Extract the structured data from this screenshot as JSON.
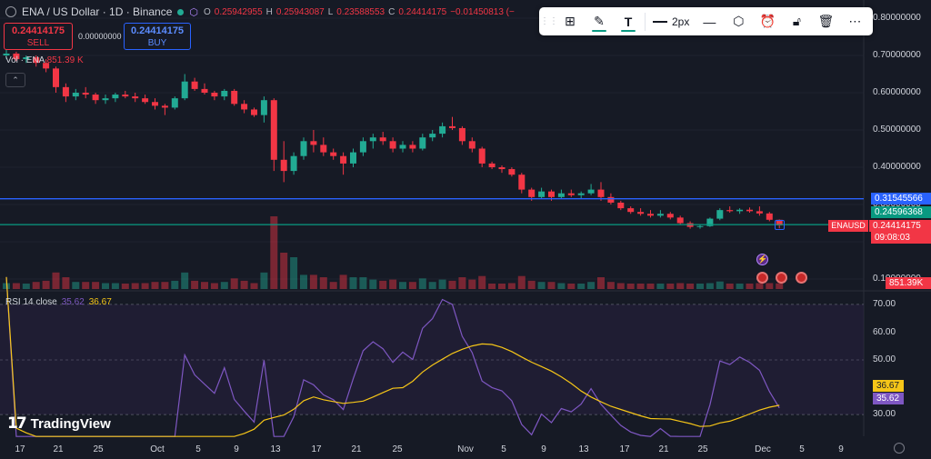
{
  "header": {
    "symbol_title": "ENA / US Dollar · 1D · Binance",
    "ohlc": [
      {
        "k": "O",
        "v": "0.25942955"
      },
      {
        "k": "H",
        "v": "0.25943087"
      },
      {
        "k": "L",
        "v": "0.23588553"
      },
      {
        "k": "C",
        "v": "0.24414175"
      },
      {
        "k": "",
        "v": "−0.01450813 (−"
      }
    ]
  },
  "trade": {
    "sell_price": "0.24414175",
    "sell_label": "SELL",
    "spread": "0.00000000",
    "buy_price": "0.24414175",
    "buy_label": "BUY"
  },
  "volume_label": {
    "name": "Vol · ENA",
    "value": "851.39 K"
  },
  "toolbar": {
    "icons": [
      "add-widgets-icon",
      "brush-icon",
      "text-icon",
      "stroke-line-icon",
      "settings-icon",
      "alarm-add-icon",
      "unlock-icon",
      "trash-icon",
      "more-icon"
    ],
    "stroke_width": "2px"
  },
  "price_axis": [
    "0.80000000",
    "0.70000000",
    "0.60000000",
    "0.50000000",
    "0.40000000",
    "0.30000000",
    "0.20000000",
    "0.10000000"
  ],
  "price_tags": {
    "blue_line": "0.31545566",
    "green_line": "0.24596368",
    "symbol": "ENAUSD",
    "last_price": "0.24414175",
    "countdown": "09:08:03",
    "volume": "851.39K"
  },
  "rsi": {
    "label": "RSI 14 close",
    "value1": "35.62",
    "value2": "36.67",
    "axis": [
      "70.00",
      "60.00",
      "50.00",
      "40.00",
      "30.00"
    ],
    "tag_ma": "36.67",
    "tag_rsi": "35.62"
  },
  "x_axis": [
    "17",
    "21",
    "25",
    "Oct",
    "5",
    "9",
    "13",
    "17",
    "21",
    "25",
    "Nov",
    "5",
    "9",
    "13",
    "17",
    "21",
    "25",
    "Dec",
    "5",
    "9"
  ],
  "logo": "TradingView",
  "colors": {
    "up": "#22ab94",
    "down": "#f23645",
    "blue_line": "#2962ff",
    "green_line": "#089981",
    "rsi": "#7e57c2",
    "rsi_ma": "#f5c518"
  },
  "chart_data": {
    "type": "candlestick",
    "x_labels": [
      "17",
      "21",
      "25",
      "Oct",
      "5",
      "9",
      "13",
      "17",
      "21",
      "25",
      "Nov",
      "5",
      "9",
      "13",
      "17",
      "21",
      "25",
      "Dec",
      "5",
      "9"
    ],
    "ylim": [
      0.1,
      0.8
    ],
    "horizontal_lines": [
      0.31545566,
      0.24596368
    ],
    "candles": [
      [
        0.7,
        0.715,
        0.69,
        0.705
      ],
      [
        0.705,
        0.71,
        0.685,
        0.69
      ],
      [
        0.69,
        0.7,
        0.68,
        0.695
      ],
      [
        0.695,
        0.7,
        0.67,
        0.68
      ],
      [
        0.68,
        0.69,
        0.655,
        0.665
      ],
      [
        0.665,
        0.67,
        0.6,
        0.615
      ],
      [
        0.615,
        0.625,
        0.575,
        0.59
      ],
      [
        0.59,
        0.61,
        0.58,
        0.6
      ],
      [
        0.6,
        0.615,
        0.585,
        0.595
      ],
      [
        0.595,
        0.6,
        0.57,
        0.58
      ],
      [
        0.58,
        0.595,
        0.57,
        0.585
      ],
      [
        0.585,
        0.6,
        0.575,
        0.595
      ],
      [
        0.595,
        0.605,
        0.585,
        0.59
      ],
      [
        0.59,
        0.6,
        0.575,
        0.585
      ],
      [
        0.585,
        0.595,
        0.57,
        0.575
      ],
      [
        0.575,
        0.585,
        0.555,
        0.565
      ],
      [
        0.565,
        0.57,
        0.54,
        0.56
      ],
      [
        0.56,
        0.59,
        0.555,
        0.585
      ],
      [
        0.585,
        0.65,
        0.58,
        0.63
      ],
      [
        0.63,
        0.64,
        0.605,
        0.61
      ],
      [
        0.61,
        0.625,
        0.595,
        0.6
      ],
      [
        0.6,
        0.605,
        0.58,
        0.59
      ],
      [
        0.59,
        0.61,
        0.58,
        0.605
      ],
      [
        0.605,
        0.61,
        0.565,
        0.57
      ],
      [
        0.57,
        0.58,
        0.545,
        0.555
      ],
      [
        0.555,
        0.56,
        0.535,
        0.54
      ],
      [
        0.54,
        0.59,
        0.52,
        0.58
      ],
      [
        0.58,
        0.585,
        0.39,
        0.42
      ],
      [
        0.42,
        0.47,
        0.36,
        0.39
      ],
      [
        0.39,
        0.44,
        0.38,
        0.43
      ],
      [
        0.43,
        0.48,
        0.42,
        0.47
      ],
      [
        0.47,
        0.5,
        0.44,
        0.46
      ],
      [
        0.46,
        0.48,
        0.43,
        0.44
      ],
      [
        0.44,
        0.45,
        0.42,
        0.43
      ],
      [
        0.43,
        0.44,
        0.38,
        0.41
      ],
      [
        0.41,
        0.45,
        0.4,
        0.44
      ],
      [
        0.44,
        0.48,
        0.43,
        0.47
      ],
      [
        0.47,
        0.49,
        0.45,
        0.48
      ],
      [
        0.48,
        0.495,
        0.46,
        0.47
      ],
      [
        0.47,
        0.48,
        0.44,
        0.45
      ],
      [
        0.45,
        0.47,
        0.44,
        0.46
      ],
      [
        0.46,
        0.47,
        0.44,
        0.45
      ],
      [
        0.45,
        0.49,
        0.445,
        0.48
      ],
      [
        0.48,
        0.5,
        0.47,
        0.49
      ],
      [
        0.49,
        0.52,
        0.48,
        0.51
      ],
      [
        0.51,
        0.535,
        0.5,
        0.505
      ],
      [
        0.505,
        0.51,
        0.46,
        0.47
      ],
      [
        0.47,
        0.48,
        0.44,
        0.45
      ],
      [
        0.45,
        0.455,
        0.4,
        0.41
      ],
      [
        0.41,
        0.415,
        0.395,
        0.4
      ],
      [
        0.4,
        0.405,
        0.385,
        0.395
      ],
      [
        0.395,
        0.4,
        0.375,
        0.38
      ],
      [
        0.38,
        0.385,
        0.33,
        0.34
      ],
      [
        0.34,
        0.345,
        0.31,
        0.32
      ],
      [
        0.32,
        0.345,
        0.315,
        0.335
      ],
      [
        0.335,
        0.34,
        0.31,
        0.32
      ],
      [
        0.32,
        0.34,
        0.315,
        0.33
      ],
      [
        0.33,
        0.34,
        0.32,
        0.325
      ],
      [
        0.325,
        0.335,
        0.315,
        0.33
      ],
      [
        0.33,
        0.355,
        0.325,
        0.34
      ],
      [
        0.34,
        0.36,
        0.31,
        0.32
      ],
      [
        0.32,
        0.33,
        0.3,
        0.305
      ],
      [
        0.305,
        0.31,
        0.285,
        0.29
      ],
      [
        0.29,
        0.295,
        0.275,
        0.28
      ],
      [
        0.28,
        0.29,
        0.27,
        0.275
      ],
      [
        0.275,
        0.285,
        0.265,
        0.27
      ],
      [
        0.27,
        0.285,
        0.265,
        0.275
      ],
      [
        0.275,
        0.28,
        0.26,
        0.265
      ],
      [
        0.265,
        0.27,
        0.245,
        0.25
      ],
      [
        0.25,
        0.255,
        0.235,
        0.24
      ],
      [
        0.24,
        0.245,
        0.235,
        0.242
      ],
      [
        0.242,
        0.265,
        0.24,
        0.262
      ],
      [
        0.262,
        0.29,
        0.258,
        0.285
      ],
      [
        0.285,
        0.295,
        0.278,
        0.282
      ],
      [
        0.282,
        0.29,
        0.275,
        0.286
      ],
      [
        0.286,
        0.292,
        0.278,
        0.282
      ],
      [
        0.282,
        0.295,
        0.27,
        0.276
      ],
      [
        0.276,
        0.28,
        0.255,
        0.259
      ],
      [
        0.259,
        0.26,
        0.236,
        0.244
      ]
    ],
    "volume_units": "relative",
    "rsi_ylim": [
      25,
      75
    ]
  }
}
